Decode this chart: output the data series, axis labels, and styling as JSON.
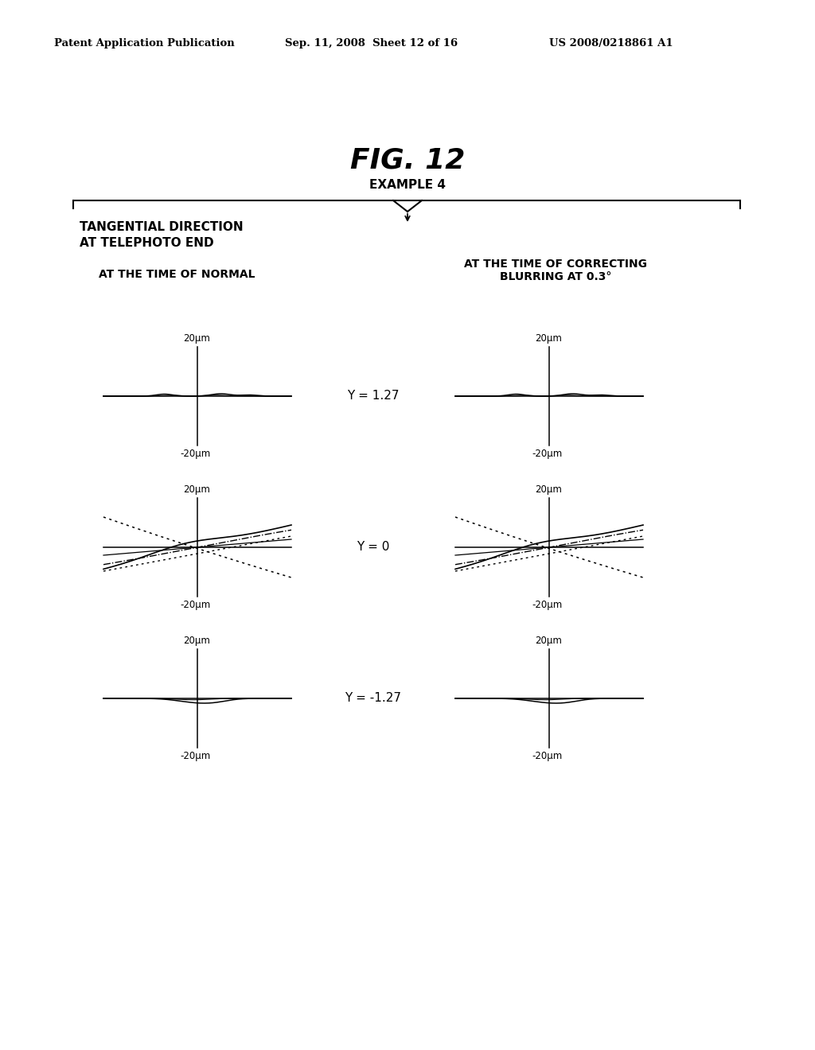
{
  "fig_title": "FIG. 12",
  "example_label": "EXAMPLE 4",
  "header_left": "Patent Application Publication",
  "header_mid": "Sep. 11, 2008  Sheet 12 of 16",
  "header_right": "US 2008/0218861 A1",
  "bracket_label": "TANGENTIAL DIRECTION\nAT TELEPHOTO END",
  "col_left_label": "AT THE TIME OF NORMAL",
  "col_right_label": "AT THE TIME OF CORRECTING\nBLURRING AT 0.3°",
  "y_labels": [
    "Y = 1.27",
    "Y = 0",
    "Y = -1.27"
  ],
  "axis_top": "20μm",
  "axis_bottom": "-20μm",
  "background_color": "#ffffff",
  "text_color": "#000000"
}
